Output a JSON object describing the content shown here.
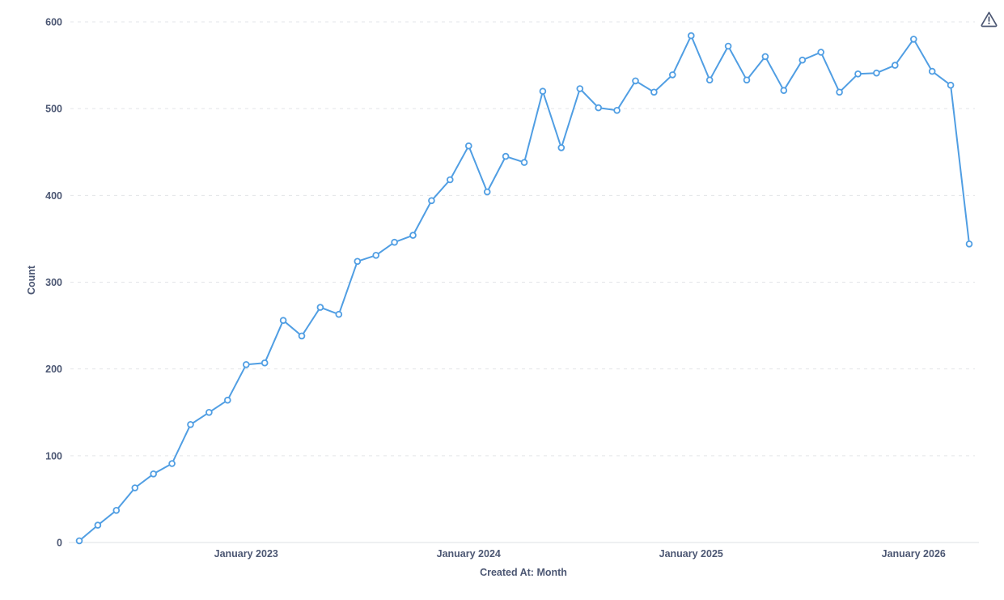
{
  "page": {
    "background": "#ffffff"
  },
  "header": {
    "warning_icon": "alert-triangle"
  },
  "chart_data": {
    "type": "line",
    "title": "",
    "xlabel": "Created At: Month",
    "ylabel": "Count",
    "legend": "none",
    "grid": "horizontal-dashed",
    "x": [
      "Apr 2022",
      "May 2022",
      "Jun 2022",
      "Jul 2022",
      "Aug 2022",
      "Sep 2022",
      "Oct 2022",
      "Nov 2022",
      "Dec 2022",
      "Jan 2023",
      "Feb 2023",
      "Mar 2023",
      "Apr 2023",
      "May 2023",
      "Jun 2023",
      "Jul 2023",
      "Aug 2023",
      "Sep 2023",
      "Oct 2023",
      "Nov 2023",
      "Dec 2023",
      "Jan 2024",
      "Feb 2024",
      "Mar 2024",
      "Apr 2024",
      "May 2024",
      "Jun 2024",
      "Jul 2024",
      "Aug 2024",
      "Sep 2024",
      "Oct 2024",
      "Nov 2024",
      "Dec 2024",
      "Jan 2025",
      "Feb 2025",
      "Mar 2025",
      "Apr 2025",
      "May 2025",
      "Jun 2025",
      "Jul 2025",
      "Aug 2025",
      "Sep 2025",
      "Oct 2025",
      "Nov 2025",
      "Dec 2025",
      "Jan 2026",
      "Feb 2026",
      "Mar 2026",
      "Apr 2026"
    ],
    "values": [
      2,
      20,
      37,
      63,
      79,
      91,
      136,
      150,
      164,
      205,
      207,
      256,
      238,
      271,
      263,
      324,
      331,
      346,
      354,
      394,
      418,
      457,
      404,
      445,
      438,
      520,
      455,
      523,
      501,
      498,
      532,
      519,
      539,
      584,
      533,
      572,
      533,
      560,
      521,
      556,
      565,
      519,
      540,
      541,
      550,
      580,
      543,
      527,
      344
    ],
    "ylim": [
      0,
      600
    ],
    "y_ticks": [
      0,
      100,
      200,
      300,
      400,
      500,
      600
    ],
    "x_tick_labels": [
      "January 2023",
      "January 2024",
      "January 2025",
      "January 2026"
    ],
    "x_tick_indices": [
      9,
      21,
      33,
      45
    ],
    "colors": {
      "line": "#509ee3",
      "marker_fill": "#ffffff",
      "marker_stroke": "#509ee3",
      "grid": "#e3e5e8",
      "baseline": "#dde1e5",
      "axis_text": "#4c5773",
      "icon": "#4c5773"
    }
  }
}
